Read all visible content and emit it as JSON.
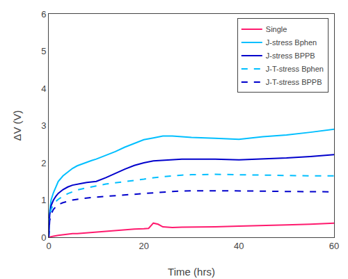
{
  "chart_data": {
    "type": "line",
    "xlabel": "Time (hrs)",
    "ylabel": "ΔV (V)",
    "xlim": [
      0,
      60
    ],
    "ylim": [
      0,
      6
    ],
    "xticks": [
      0,
      20,
      40,
      60
    ],
    "yticks": [
      0,
      1,
      2,
      3,
      4,
      5,
      6
    ],
    "grid": false,
    "legend": "upper right",
    "series": [
      {
        "name": "Single",
        "color": "#ff1a6e",
        "line_style": "solid",
        "x": [
          0,
          0.3,
          0.5,
          1,
          2,
          3,
          4,
          5,
          6,
          7,
          8,
          9,
          10,
          12,
          14,
          16,
          18,
          20,
          21,
          22,
          23,
          24,
          25,
          26,
          28,
          30,
          35,
          40,
          45,
          50,
          55,
          60
        ],
        "values": [
          0.0,
          0.01,
          0.02,
          0.03,
          0.05,
          0.07,
          0.09,
          0.1,
          0.1,
          0.11,
          0.12,
          0.13,
          0.14,
          0.17,
          0.19,
          0.21,
          0.22,
          0.23,
          0.24,
          0.38,
          0.35,
          0.28,
          0.27,
          0.26,
          0.27,
          0.27,
          0.28,
          0.3,
          0.31,
          0.33,
          0.35,
          0.38
        ]
      },
      {
        "name": "J-stress Bphen",
        "color": "#00bfff",
        "line_style": "solid",
        "x": [
          0,
          0.2,
          0.5,
          1,
          1.5,
          2,
          3,
          4,
          5,
          6,
          7,
          8,
          9,
          10,
          12,
          14,
          16,
          18,
          20,
          22,
          24,
          26,
          28,
          30,
          35,
          40,
          45,
          50,
          55,
          60
        ],
        "values": [
          0.0,
          0.7,
          1.0,
          1.2,
          1.35,
          1.5,
          1.65,
          1.75,
          1.85,
          1.92,
          1.97,
          2.02,
          2.06,
          2.1,
          2.2,
          2.3,
          2.42,
          2.52,
          2.62,
          2.67,
          2.72,
          2.72,
          2.7,
          2.68,
          2.66,
          2.63,
          2.7,
          2.75,
          2.82,
          2.9
        ]
      },
      {
        "name": "J-stress BPPB",
        "color": "#0000cc",
        "line_style": "solid",
        "x": [
          0,
          0.2,
          0.5,
          1,
          1.5,
          2,
          3,
          4,
          5,
          6,
          7,
          8,
          9,
          10,
          12,
          14,
          16,
          18,
          20,
          22,
          24,
          26,
          28,
          30,
          35,
          40,
          45,
          50,
          55,
          60
        ],
        "values": [
          0.0,
          0.6,
          0.85,
          1.0,
          1.1,
          1.18,
          1.28,
          1.35,
          1.4,
          1.43,
          1.45,
          1.47,
          1.48,
          1.5,
          1.6,
          1.72,
          1.83,
          1.93,
          2.0,
          2.05,
          2.07,
          2.09,
          2.1,
          2.1,
          2.1,
          2.08,
          2.1,
          2.13,
          2.17,
          2.22
        ]
      },
      {
        "name": "J-T-stress Bphen",
        "color": "#00bfff",
        "line_style": "dashed",
        "x": [
          0,
          0.2,
          0.5,
          1,
          1.5,
          2,
          3,
          4,
          5,
          6,
          7,
          8,
          9,
          10,
          12,
          14,
          16,
          18,
          20,
          22,
          24,
          26,
          28,
          30,
          35,
          40,
          45,
          50,
          55,
          60
        ],
        "values": [
          0.0,
          0.55,
          0.75,
          0.88,
          0.96,
          1.02,
          1.1,
          1.17,
          1.22,
          1.27,
          1.3,
          1.33,
          1.36,
          1.38,
          1.43,
          1.46,
          1.5,
          1.52,
          1.56,
          1.6,
          1.63,
          1.65,
          1.67,
          1.68,
          1.69,
          1.68,
          1.67,
          1.65,
          1.65,
          1.65
        ]
      },
      {
        "name": "J-T-stress BPPB",
        "color": "#0000cc",
        "line_style": "dashed",
        "x": [
          0,
          0.2,
          0.5,
          1,
          1.5,
          2,
          3,
          4,
          5,
          6,
          7,
          8,
          9,
          10,
          12,
          14,
          16,
          18,
          20,
          22,
          24,
          26,
          28,
          30,
          35,
          40,
          45,
          50,
          55,
          60
        ],
        "values": [
          0.0,
          0.45,
          0.62,
          0.75,
          0.82,
          0.88,
          0.93,
          0.97,
          1.0,
          1.02,
          1.04,
          1.06,
          1.07,
          1.08,
          1.1,
          1.12,
          1.14,
          1.16,
          1.18,
          1.2,
          1.22,
          1.23,
          1.24,
          1.25,
          1.25,
          1.25,
          1.24,
          1.23,
          1.22,
          1.22
        ]
      }
    ]
  }
}
